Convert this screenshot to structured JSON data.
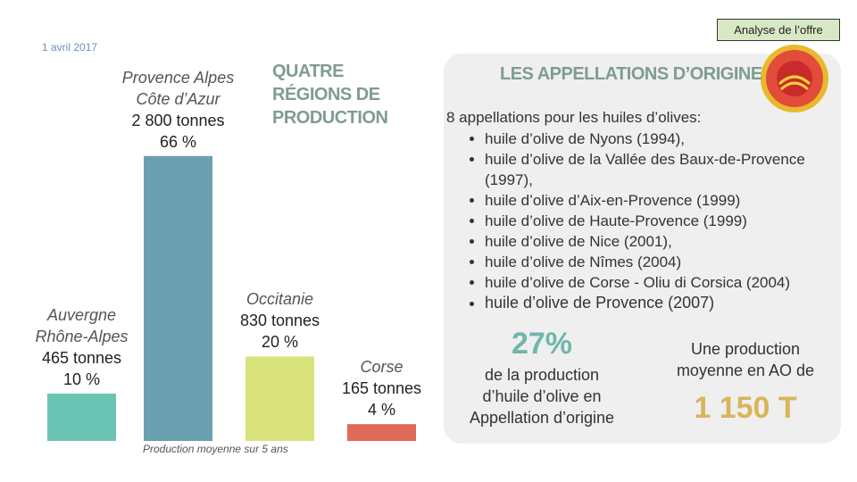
{
  "date": "1 avril 2017",
  "header_button": "Analyse de l’offre",
  "chart_data": {
    "type": "bar",
    "title": "QUATRE RÉGIONS DE PRODUCTION",
    "categories": [
      "Auvergne\nRhône-Alpes",
      "Provence Alpes\nCôte d’Azur",
      "Occitanie",
      "Corse"
    ],
    "values": [
      465,
      2800,
      830,
      165
    ],
    "value_labels": [
      "465 tonnes",
      "2 800 tonnes",
      "830 tonnes",
      "165 tonnes"
    ],
    "percent": [
      10,
      66,
      20,
      4
    ],
    "percent_labels": [
      "10 %",
      "66 %",
      "20 %",
      "4 %"
    ],
    "colors": [
      "#6cc4b5",
      "#6b9fb0",
      "#d9e37c",
      "#df6a56"
    ],
    "note": "Production moyenne sur 5 ans"
  },
  "panel": {
    "title": "LES APPELLATIONS D’ORIGINE",
    "intro": "8 appellations pour les huiles d’olives:",
    "items": [
      "huile d’olive de Nyons (1994),",
      "huile d’olive de la Vallée des Baux-de-Provence (1997),",
      "huile d’olive d’Aix-en-Provence (1999)",
      "huile d’olive de Haute-Provence (1999)",
      "huile d’olive de Nice (2001),",
      "huile d’olive de Nîmes (2004)",
      "huile d’olive de Corse - Oliu di Corsica (2004)",
      "huile d’olive de Provence (2007)"
    ],
    "stat_value": "27%",
    "stat_text": "de la production\nd’huile d’olive en\nAppellation d’origine",
    "avg_text": "Une production\nmoyenne en AO de",
    "avg_value": "1 150 T"
  }
}
